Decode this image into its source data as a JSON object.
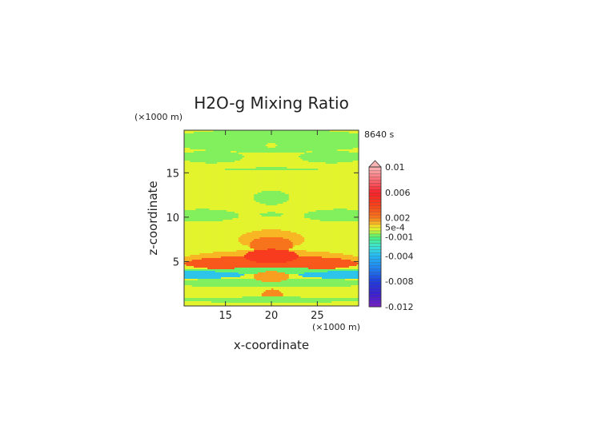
{
  "chart_data": {
    "type": "heatmap",
    "title": "H2O-g Mixing Ratio",
    "time_label": "8640 s",
    "xlabel": "x-coordinate",
    "ylabel": "z-coordinate",
    "x_unit": "(×1000 m)",
    "y_unit": "(×1000 m)",
    "xlim": [
      10.5,
      29.5
    ],
    "ylim": [
      0,
      19.8
    ],
    "x_ticks": [
      15,
      20,
      25
    ],
    "y_ticks": [
      5,
      10,
      15
    ],
    "colorbar": {
      "range": [
        -0.012,
        0.01
      ],
      "labels": [
        "0.01",
        "0.006",
        "0.002",
        "5e-4",
        "-0.001",
        "-0.004",
        "-0.008",
        "-0.012"
      ],
      "label_values": [
        0.01,
        0.006,
        0.002,
        0.0005,
        -0.001,
        -0.004,
        -0.008,
        -0.012
      ],
      "stops": [
        {
          "v": -0.012,
          "color": "#7a1fc4"
        },
        {
          "v": -0.01,
          "color": "#3c1fd0"
        },
        {
          "v": -0.008,
          "color": "#1f3cdc"
        },
        {
          "v": -0.006,
          "color": "#1f7ff0"
        },
        {
          "v": -0.004,
          "color": "#24b6f4"
        },
        {
          "v": -0.0025,
          "color": "#3ce4d4"
        },
        {
          "v": -0.001,
          "color": "#4cf07a"
        },
        {
          "v": -0.0002,
          "color": "#b8f040"
        },
        {
          "v": 0.0005,
          "color": "#f4f426"
        },
        {
          "v": 0.001,
          "color": "#f8c426"
        },
        {
          "v": 0.002,
          "color": "#f87a1c"
        },
        {
          "v": 0.004,
          "color": "#f8421a"
        },
        {
          "v": 0.006,
          "color": "#f8202a"
        },
        {
          "v": 0.008,
          "color": "#f86a72"
        },
        {
          "v": 0.01,
          "color": "#f8b4b4"
        }
      ]
    },
    "field": {
      "background_value": 0.0003,
      "regions": [
        {
          "name": "top-band",
          "xc": 20,
          "zc": 18.6,
          "rx": 12,
          "rz": 1.3,
          "value": -0.0006
        },
        {
          "name": "top-spot",
          "xc": 20,
          "zc": 18.1,
          "rx": 0.6,
          "rz": 0.25,
          "value": 0.0003
        },
        {
          "name": "upper-arc-left",
          "xc": 13.5,
          "zc": 16.8,
          "rx": 3.5,
          "rz": 0.7,
          "value": -0.0006
        },
        {
          "name": "upper-arc-right",
          "xc": 26.5,
          "zc": 16.8,
          "rx": 3.5,
          "rz": 0.7,
          "value": -0.0006
        },
        {
          "name": "thin-line-16",
          "xc": 20,
          "zc": 15.4,
          "rx": 5,
          "rz": 0.18,
          "value": -0.0006
        },
        {
          "name": "mid-blob",
          "xc": 20,
          "zc": 12.2,
          "rx": 2,
          "rz": 0.8,
          "value": -0.0006
        },
        {
          "name": "left-mid-band",
          "xc": 12.5,
          "zc": 10.2,
          "rx": 4,
          "rz": 0.7,
          "value": -0.0006
        },
        {
          "name": "right-mid-band",
          "xc": 27.5,
          "zc": 10.2,
          "rx": 4,
          "rz": 0.7,
          "value": -0.0006
        },
        {
          "name": "center-10",
          "xc": 20,
          "zc": 10.3,
          "rx": 1.2,
          "rz": 0.25,
          "value": -0.0006
        },
        {
          "name": "warm-upper",
          "xc": 20,
          "zc": 7.5,
          "rx": 3.6,
          "rz": 1.1,
          "value": 0.0012
        },
        {
          "name": "warm-upper-core",
          "xc": 20,
          "zc": 6.9,
          "rx": 2.4,
          "rz": 0.9,
          "value": 0.0022
        },
        {
          "name": "warm-wide",
          "xc": 20,
          "zc": 5.2,
          "rx": 9.8,
          "rz": 1.1,
          "value": 0.0012
        },
        {
          "name": "red-core",
          "xc": 20,
          "zc": 4.8,
          "rx": 9.5,
          "rz": 0.85,
          "value": 0.0032
        },
        {
          "name": "red-peak",
          "xc": 20,
          "zc": 5.6,
          "rx": 3,
          "rz": 0.8,
          "value": 0.0045
        },
        {
          "name": "green-band",
          "xc": 20,
          "zc": 3.9,
          "rx": 12,
          "rz": 0.35,
          "value": -0.0008
        },
        {
          "name": "cyan-left",
          "xc": 12,
          "zc": 3.5,
          "rx": 5,
          "rz": 0.4,
          "value": -0.0035
        },
        {
          "name": "cyan-right",
          "xc": 28,
          "zc": 3.5,
          "rx": 5,
          "rz": 0.4,
          "value": -0.0035
        },
        {
          "name": "lower-green",
          "xc": 20,
          "zc": 2.6,
          "rx": 12,
          "rz": 0.5,
          "value": -0.0006
        },
        {
          "name": "lower-orange",
          "xc": 20,
          "zc": 3.3,
          "rx": 2,
          "rz": 0.6,
          "value": 0.0015
        },
        {
          "name": "bottom-orange",
          "xc": 20.1,
          "zc": 1.1,
          "rx": 1.2,
          "rz": 0.8,
          "value": 0.0018
        },
        {
          "name": "bottom-band",
          "xc": 20,
          "zc": 0.7,
          "rx": 12,
          "rz": 0.3,
          "value": -0.0006
        }
      ]
    }
  }
}
